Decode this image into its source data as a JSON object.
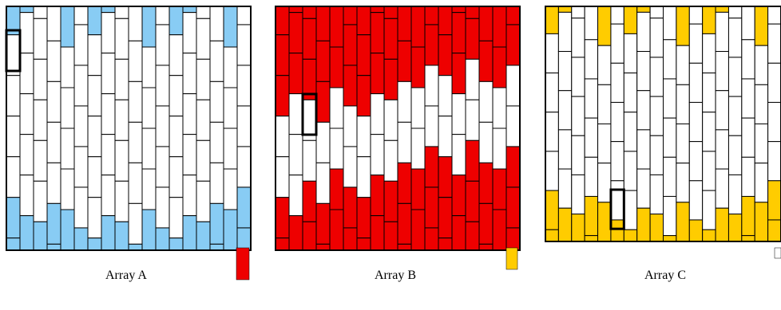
{
  "colors": {
    "background": "#ffffff",
    "outline": "#000000",
    "white_cell": "#ffffff"
  },
  "panels": [
    {
      "label": "Array A",
      "fill_color": "#88ccf4",
      "pattern": "diagonal-bands",
      "extra_cell_color": "#ee0000"
    },
    {
      "label": "Array B",
      "fill_color": "#ee0000",
      "pattern": "middle-white-diagonal-band",
      "extra_cell_color": "#ffcc00"
    },
    {
      "label": "Array C",
      "fill_color": "#ffcc00",
      "pattern": "diagonal-bands",
      "extra_cell_color": "#ffffff"
    }
  ]
}
